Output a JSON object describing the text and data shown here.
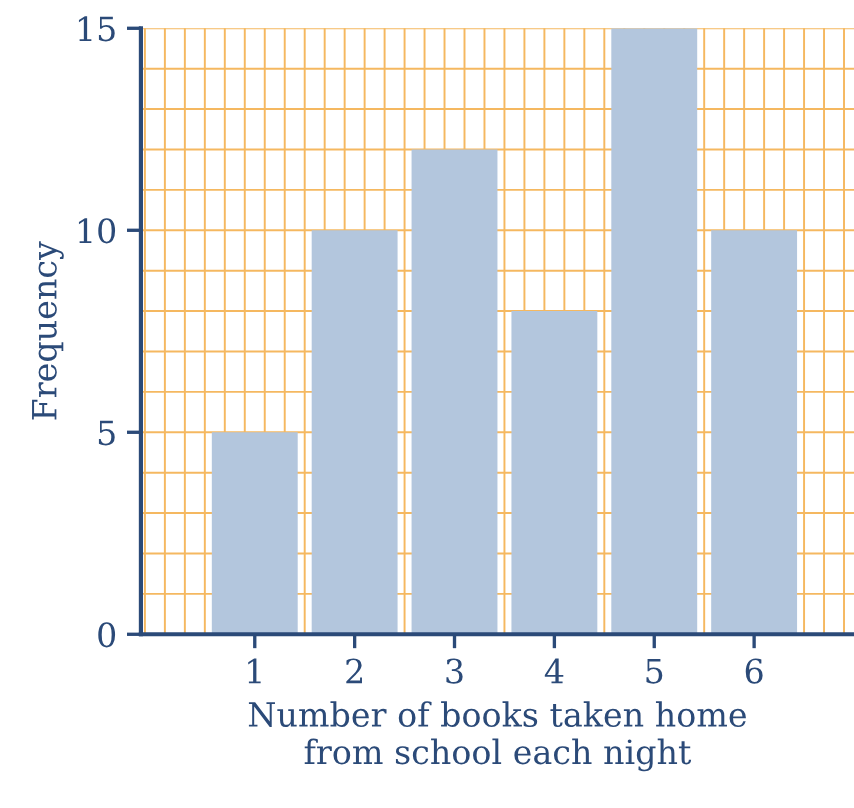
{
  "chart_data": {
    "type": "bar",
    "categories": [
      "1",
      "2",
      "3",
      "4",
      "5",
      "6"
    ],
    "values": [
      5,
      10,
      12,
      8,
      15,
      10
    ],
    "color": "#b3c6dd",
    "xlabel": "Number of books taken home\nfrom school each night",
    "ylabel": "Frequency",
    "ylim": [
      0,
      15
    ],
    "yticks": [
      0,
      5,
      10,
      15
    ],
    "grid": true
  }
}
